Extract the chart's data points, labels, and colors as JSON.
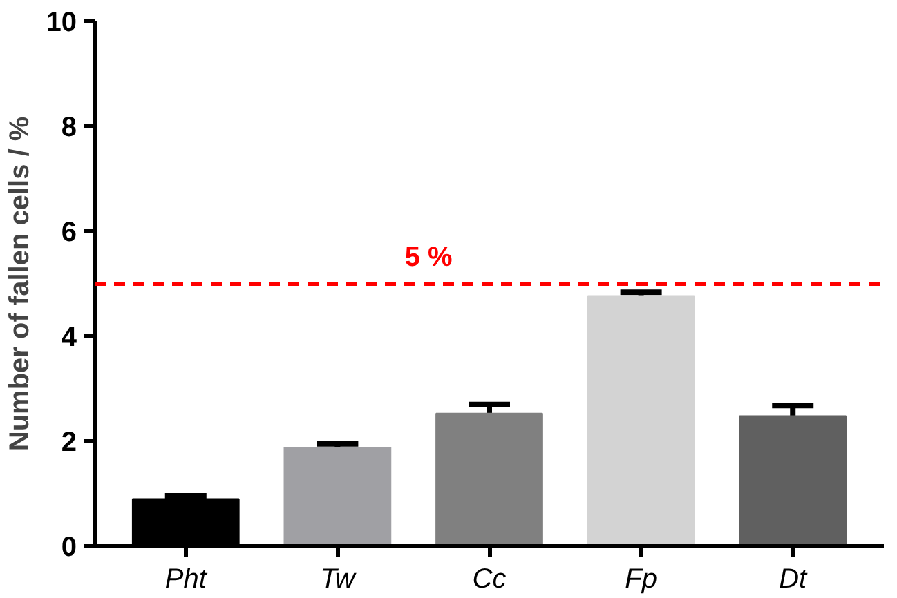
{
  "chart_data": {
    "type": "bar",
    "ylabel": "Number of fallen cells / %",
    "categories": [
      "Pht",
      "Tw",
      "Cc",
      "Fp",
      "Dt"
    ],
    "values": [
      0.9,
      1.88,
      2.53,
      4.77,
      2.48
    ],
    "errors": [
      0.06,
      0.07,
      0.17,
      0.07,
      0.2
    ],
    "colors": [
      "#000000",
      "#a0a0a4",
      "#808080",
      "#d3d3d3",
      "#606060"
    ],
    "ylim": [
      0,
      10
    ],
    "yticks": [
      0,
      2,
      4,
      6,
      8,
      10
    ],
    "grid": false,
    "ref_lines": [
      {
        "axis": "y",
        "value": 5,
        "label": "5 %",
        "color": "#ff0000",
        "line_style": "dashed"
      }
    ]
  }
}
